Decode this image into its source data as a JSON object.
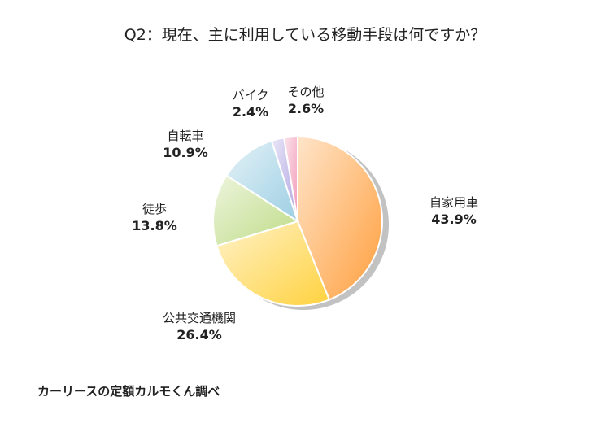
{
  "chart_data": {
    "type": "pie",
    "title": "Q2：現在、主に利用している移動手段は何ですか？",
    "slices": [
      {
        "label": "自家用車",
        "value": 43.9,
        "display": "43.9%",
        "color": "#ff9f3d"
      },
      {
        "label": "公共交通機関",
        "value": 26.4,
        "display": "26.4%",
        "color": "#ffd23f"
      },
      {
        "label": "徒歩",
        "value": 13.8,
        "display": "13.8%",
        "color": "#bedb86"
      },
      {
        "label": "自転車",
        "value": 10.9,
        "display": "10.9%",
        "color": "#9dcfe4"
      },
      {
        "label": "バイク",
        "value": 2.4,
        "display": "2.4%",
        "color": "#b0a4e2"
      },
      {
        "label": "その他",
        "value": 2.6,
        "display": "2.6%",
        "color": "#f29ab7"
      }
    ],
    "direction": "clockwise",
    "start": "12 o'clock"
  },
  "source": "カーリースの定額カルモくん調べ"
}
